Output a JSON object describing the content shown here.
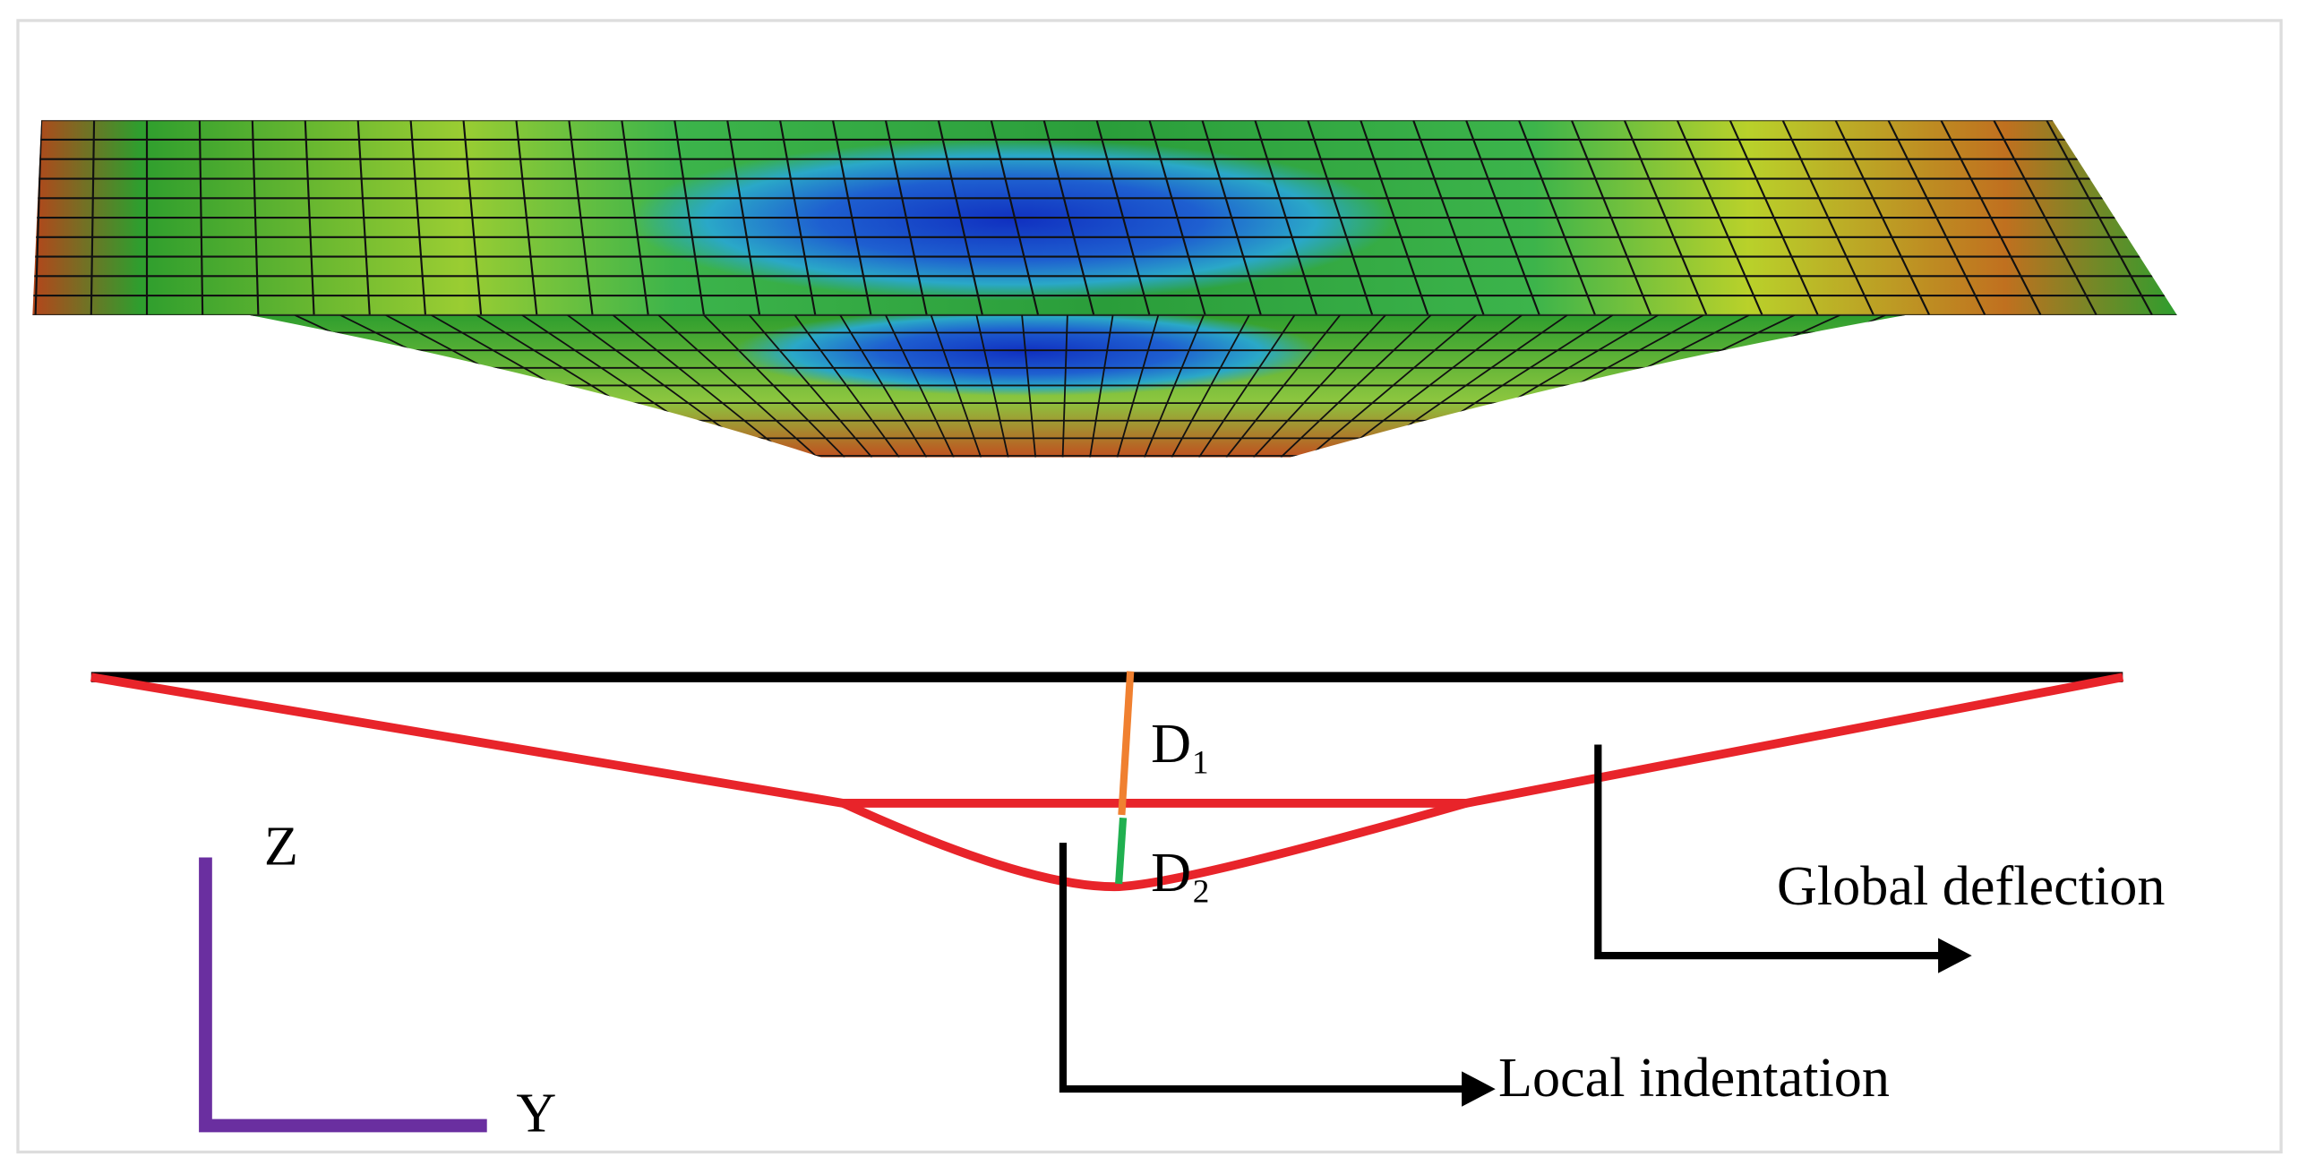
{
  "axes": {
    "z": "Z",
    "y": "Y"
  },
  "labels": {
    "d1": "D₁",
    "d2": "D₂",
    "global": "Global deflection",
    "local": "Local indentation"
  }
}
